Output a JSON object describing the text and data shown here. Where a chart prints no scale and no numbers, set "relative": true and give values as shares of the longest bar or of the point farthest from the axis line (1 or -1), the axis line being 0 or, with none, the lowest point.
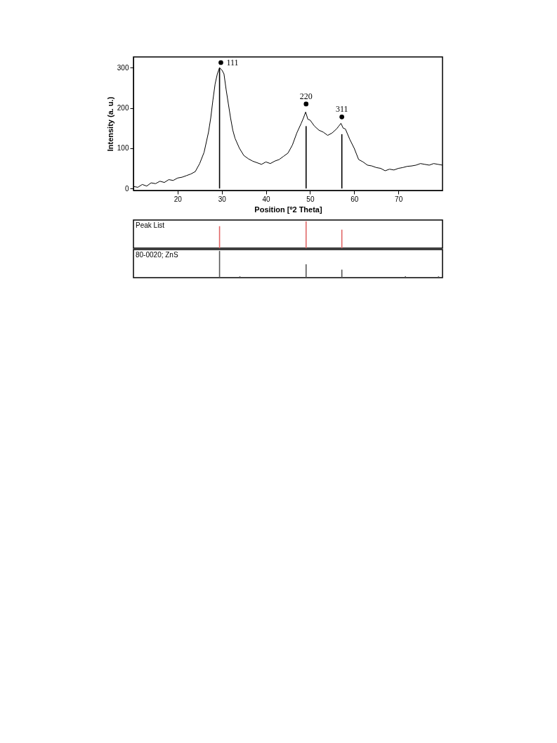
{
  "chart_data": [
    {
      "type": "line",
      "xlabel": "Position [º2 Theta]",
      "ylabel": "Intensity (a. u.)",
      "xlim": [
        10,
        80
      ],
      "ylim": [
        -5,
        327
      ],
      "xticks": [
        20,
        30,
        40,
        50,
        60,
        70
      ],
      "yticks": [
        0,
        100,
        200,
        300
      ],
      "grid": false,
      "marker": "none",
      "line_style": "solid",
      "series": [
        {
          "type": "line",
          "color": "#000000",
          "x": [
            10,
            11,
            12,
            13,
            14,
            15,
            16,
            17,
            18,
            19,
            20,
            21,
            22,
            23,
            24,
            25,
            26,
            27,
            27.5,
            28,
            28.5,
            29,
            29.5,
            30,
            30.5,
            31,
            31.5,
            32,
            32.5,
            33,
            34,
            35,
            36,
            37,
            38,
            39,
            40,
            41,
            42,
            43,
            44,
            45,
            46,
            47,
            48,
            48.5,
            49,
            49.5,
            50,
            51,
            52,
            53,
            54,
            55,
            56,
            56.5,
            57,
            57.5,
            58,
            59,
            60,
            61,
            62,
            63,
            64,
            65,
            66,
            67,
            68,
            69,
            70,
            71,
            72,
            73,
            74,
            75,
            76,
            77,
            78,
            79,
            80
          ],
          "values": [
            5,
            3,
            10,
            6,
            14,
            12,
            18,
            15,
            22,
            20,
            26,
            28,
            32,
            36,
            42,
            62,
            90,
            140,
            175,
            220,
            260,
            285,
            300,
            295,
            285,
            245,
            210,
            175,
            145,
            125,
            100,
            82,
            74,
            68,
            64,
            60,
            66,
            62,
            68,
            72,
            80,
            88,
            108,
            138,
            162,
            175,
            190,
            172,
            170,
            155,
            145,
            140,
            132,
            138,
            148,
            155,
            162,
            150,
            148,
            122,
            100,
            72,
            66,
            58,
            56,
            52,
            50,
            44,
            48,
            46,
            50,
            52,
            55,
            56,
            58,
            62,
            60,
            58,
            62,
            60,
            58
          ]
        },
        {
          "type": "bar",
          "color": "#000000",
          "x": [
            29.5,
            49.1,
            57.2
          ],
          "values": [
            300,
            155,
            135
          ]
        },
        {
          "type": "scatter",
          "marker": "circle",
          "color": "#000000",
          "x": [
            29.8,
            49.1,
            57.2
          ],
          "values": [
            313,
            210,
            178
          ]
        }
      ],
      "annotations": [
        {
          "text": "111",
          "x": 29.8,
          "y": 313
        },
        {
          "text": "220",
          "x": 49.1,
          "y": 210
        },
        {
          "text": "311",
          "x": 57.2,
          "y": 178
        }
      ]
    },
    {
      "type": "bar",
      "relative": true,
      "title": "Peak List",
      "xlim": [
        10,
        80
      ],
      "xticks": [
        20,
        30,
        40,
        50,
        60,
        70
      ],
      "tick_labels": false,
      "series": [
        {
          "color": "#e06666",
          "x": [
            29.5,
            49.1,
            57.2
          ],
          "values": [
            0.82,
            1,
            0.69
          ]
        }
      ]
    },
    {
      "type": "bar",
      "relative": true,
      "title": "80-0020; ZnS",
      "xlim": [
        10,
        80
      ],
      "xticks": [
        20,
        30,
        40,
        50,
        60,
        70
      ],
      "tick_labels": false,
      "series": [
        {
          "color": "#555555",
          "x": [
            29.5,
            34.1,
            49.1,
            57.2,
            71.6,
            79.1
          ],
          "values": [
            1,
            0.05,
            0.5,
            0.3,
            0.05,
            0.05
          ]
        }
      ]
    }
  ]
}
